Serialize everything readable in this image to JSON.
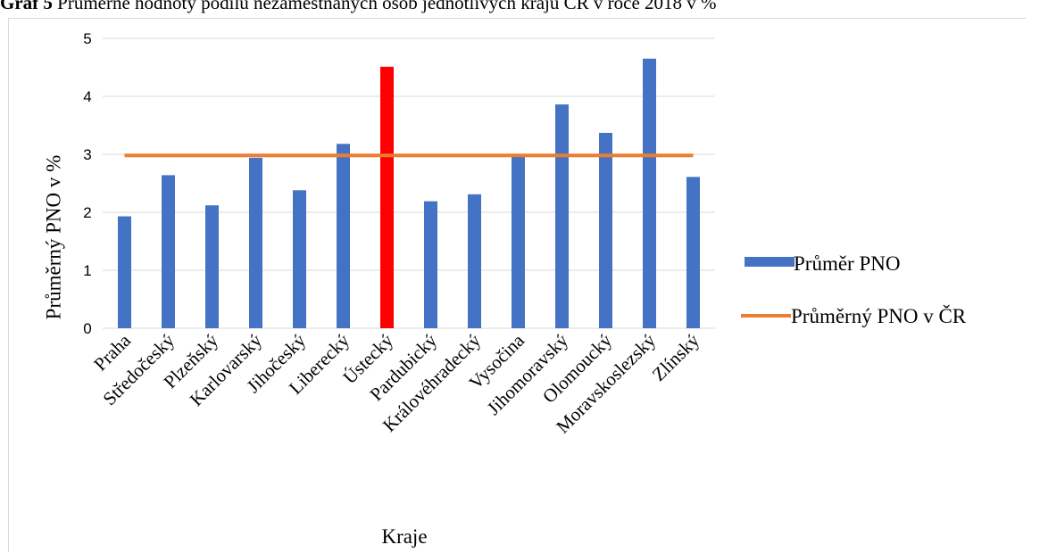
{
  "caption": {
    "prefix": "Graf 5",
    "text": " Průměrné hodnoty podílu nezaměstnaných osob jednotlivých krajů ČR v roce 2018 v %"
  },
  "chart_data": {
    "type": "bar",
    "xlabel": "Kraje",
    "ylabel": "Průměrný PNO v %",
    "ylim": [
      0,
      5
    ],
    "yticks": [
      "0",
      "1",
      "2",
      "3",
      "4",
      "5"
    ],
    "grid": true,
    "legend_position": "right",
    "categories": [
      "Praha",
      "Středočeský",
      "Plzeňský",
      "Karlovarský",
      "Jihočeský",
      "Liberecký",
      "Ústecký",
      "Pardubický",
      "Královéhradecký",
      "Vysočina",
      "Jihomoravský",
      "Olomoucký",
      "Moravskoslezský",
      "Zlínský"
    ],
    "series": [
      {
        "name": "Průměr PNO",
        "type": "bar",
        "color": "#4472c4",
        "highlight_color": "#ff0000",
        "highlight_index": 6,
        "values": [
          1.93,
          2.64,
          2.12,
          2.94,
          2.38,
          3.18,
          4.51,
          2.19,
          2.31,
          2.97,
          3.86,
          3.37,
          4.65,
          2.61
        ]
      },
      {
        "name": "Průměrný PNO v ČR",
        "type": "line",
        "color": "#ed7d31",
        "value": 2.98
      }
    ]
  }
}
